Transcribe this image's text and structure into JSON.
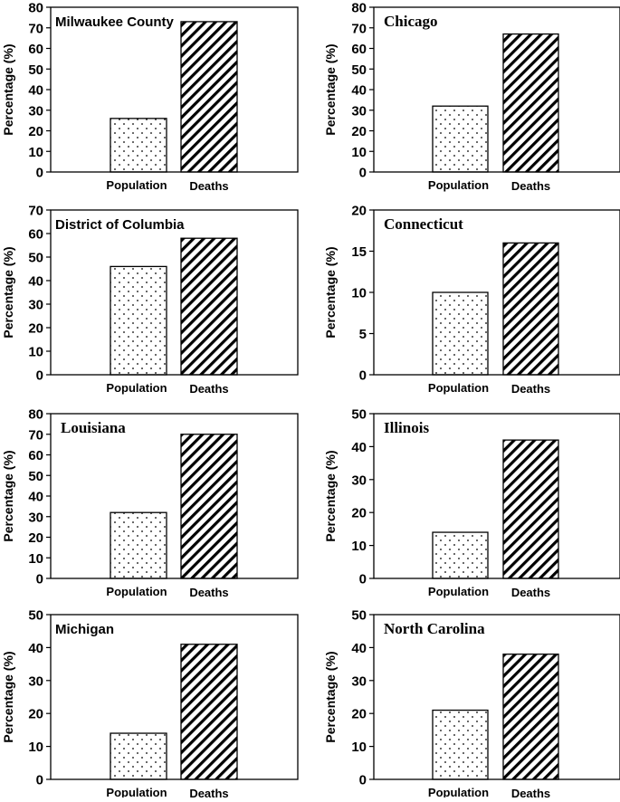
{
  "figure": {
    "ylabel": "Percentage (%)",
    "categories": [
      "Population",
      "Deaths"
    ]
  },
  "chart_data": [
    {
      "type": "bar",
      "title": "Milwaukee County",
      "title_style": "sans",
      "categories": [
        "Population",
        "Deaths"
      ],
      "values": [
        26,
        73
      ],
      "ylabel": "Percentage (%)",
      "ylim": [
        0,
        80
      ],
      "yticks": [
        0,
        10,
        20,
        30,
        40,
        50,
        60,
        70,
        80
      ]
    },
    {
      "type": "bar",
      "title": "Chicago",
      "title_style": "serif",
      "categories": [
        "Population",
        "Deaths"
      ],
      "values": [
        32,
        67
      ],
      "ylabel": "Percentage (%)",
      "ylim": [
        0,
        80
      ],
      "yticks": [
        0,
        10,
        20,
        30,
        40,
        50,
        60,
        70,
        80
      ]
    },
    {
      "type": "bar",
      "title": "District of Columbia",
      "title_style": "sans",
      "categories": [
        "Population",
        "Deaths"
      ],
      "values": [
        46,
        58
      ],
      "ylabel": "Percentage (%)",
      "ylim": [
        0,
        70
      ],
      "yticks": [
        0,
        10,
        20,
        30,
        40,
        50,
        60,
        70
      ]
    },
    {
      "type": "bar",
      "title": "Connecticut",
      "title_style": "serif",
      "categories": [
        "Population",
        "Deaths"
      ],
      "values": [
        10,
        16
      ],
      "ylabel": "Percentage (%)",
      "ylim": [
        0,
        20
      ],
      "yticks": [
        0,
        5,
        10,
        15,
        20
      ]
    },
    {
      "type": "bar",
      "title": "Louisiana",
      "title_style": "serif",
      "categories": [
        "Population",
        "Deaths"
      ],
      "values": [
        32,
        70
      ],
      "ylabel": "Percentage (%)",
      "ylim": [
        0,
        80
      ],
      "yticks": [
        0,
        10,
        20,
        30,
        40,
        50,
        60,
        70,
        80
      ]
    },
    {
      "type": "bar",
      "title": "Illinois",
      "title_style": "serif",
      "categories": [
        "Population",
        "Deaths"
      ],
      "values": [
        14,
        42
      ],
      "ylabel": "Percentage (%)",
      "ylim": [
        0,
        50
      ],
      "yticks": [
        0,
        10,
        20,
        30,
        40,
        50
      ]
    },
    {
      "type": "bar",
      "title": "Michigan",
      "title_style": "sans",
      "categories": [
        "Population",
        "Deaths"
      ],
      "values": [
        14,
        41
      ],
      "ylabel": "Percentage (%)",
      "ylim": [
        0,
        50
      ],
      "yticks": [
        0,
        10,
        20,
        30,
        40,
        50
      ]
    },
    {
      "type": "bar",
      "title": "North Carolina",
      "title_style": "serif",
      "categories": [
        "Population",
        "Deaths"
      ],
      "values": [
        21,
        38
      ],
      "ylabel": "Percentage (%)",
      "ylim": [
        0,
        50
      ],
      "yticks": [
        0,
        10,
        20,
        30,
        40,
        50
      ]
    }
  ]
}
